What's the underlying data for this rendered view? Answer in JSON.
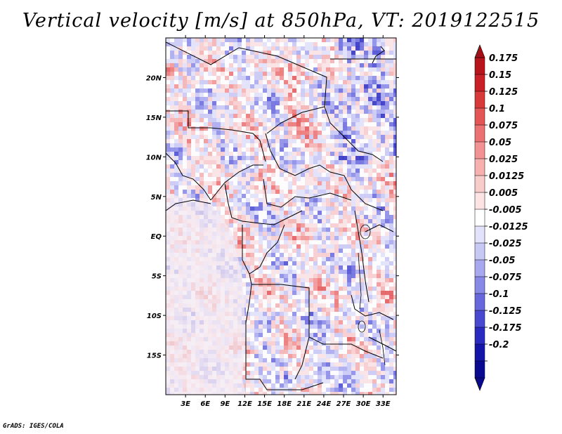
{
  "title": "Vertical velocity [m/s] at 850hPa, VT: 2019122515",
  "footer": "GrADS: IGES/COLA",
  "map": {
    "lat_labels": [
      "20N",
      "15N",
      "10N",
      "5N",
      "EQ",
      "5S",
      "10S",
      "15S"
    ],
    "lat_values": [
      20,
      15,
      10,
      5,
      0,
      -5,
      -10,
      -15
    ],
    "lon_labels": [
      "3E",
      "6E",
      "9E",
      "12E",
      "15E",
      "18E",
      "21E",
      "24E",
      "27E",
      "30E",
      "33E"
    ],
    "lon_values": [
      3,
      6,
      9,
      12,
      15,
      18,
      21,
      24,
      27,
      30,
      33
    ],
    "lon_range": [
      0,
      35
    ],
    "lat_range": [
      -20,
      25
    ]
  },
  "colorbar": {
    "labels": [
      "0.175",
      "0.15",
      "0.125",
      "0.1",
      "0.075",
      "0.05",
      "0.025",
      "0.0125",
      "0.005",
      "-0.005",
      "-0.0125",
      "-0.025",
      "-0.05",
      "-0.075",
      "-0.1",
      "-0.125",
      "-0.175",
      "-0.2"
    ],
    "colors": [
      "#b8141c",
      "#c82026",
      "#d83a3a",
      "#e45656",
      "#ec7272",
      "#f29292",
      "#f6b0b0",
      "#f9cccc",
      "#fce4e4",
      "#ffffff",
      "#e2e2fa",
      "#c8c8f4",
      "#a8a8ee",
      "#8888e6",
      "#6868dc",
      "#4848d0",
      "#2a2ac0",
      "#1414a8",
      "#0a0a90"
    ],
    "top_color": "#a01016",
    "bottom_color": "#0a0a88"
  }
}
